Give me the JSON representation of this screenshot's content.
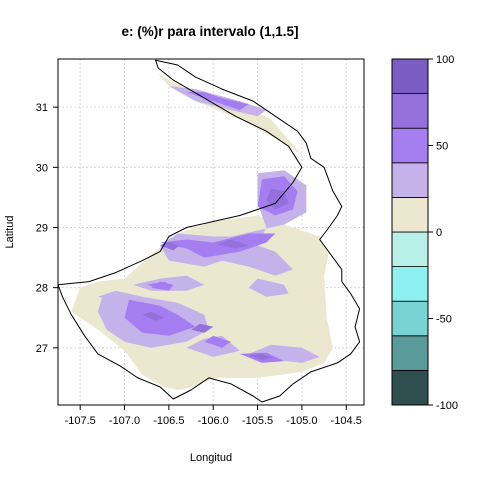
{
  "title": "e:   (%)r para intervalo (1,1.5]",
  "chart_data": {
    "type": "heatmap",
    "title": "e:   (%)r para intervalo (1,1.5]",
    "xlabel": "Longitud",
    "ylabel": "Latitud",
    "xlim": [
      -107.75,
      -104.3
    ],
    "ylim": [
      26.05,
      31.8
    ],
    "x_ticks": [
      -107.5,
      -107.0,
      -106.5,
      -106.0,
      -105.5,
      -105.0,
      -104.5
    ],
    "x_tick_labels": [
      "-107.5",
      "-107.0",
      "-106.5",
      "-106.0",
      "-105.5",
      "-105.0",
      "-104.5"
    ],
    "y_ticks": [
      27,
      28,
      29,
      30,
      31
    ],
    "y_tick_labels": [
      "27",
      "28",
      "29",
      "30",
      "31"
    ],
    "grid": true,
    "colorbar": {
      "breaks": [
        -100,
        -80,
        -60,
        -40,
        -20,
        0,
        20,
        40,
        60,
        80,
        100
      ],
      "tick_values": [
        -100,
        -50,
        0,
        50,
        100
      ],
      "tick_labels": [
        "-100",
        "-50",
        "0",
        "50",
        "100"
      ],
      "colors": [
        "#2f4f4f",
        "#5a9a9a",
        "#79d3d3",
        "#8ef0f0",
        "#b8f0e8",
        "#ece7cf",
        "#c6b2ea",
        "#a47ef0",
        "#9370db",
        "#7b5cc2"
      ]
    },
    "regions": [
      {
        "level": 0,
        "polygons": [
          [
            [
              -106.4,
              26.3
            ],
            [
              -106.2,
              26.35
            ],
            [
              -106.0,
              26.5
            ],
            [
              -105.5,
              26.5
            ],
            [
              -105.0,
              26.6
            ],
            [
              -104.75,
              26.75
            ],
            [
              -104.65,
              27.0
            ],
            [
              -104.72,
              27.5
            ],
            [
              -104.75,
              28.2
            ],
            [
              -104.7,
              28.55
            ],
            [
              -104.8,
              28.85
            ],
            [
              -105.1,
              29.0
            ],
            [
              -105.5,
              29.2
            ],
            [
              -106.0,
              29.1
            ],
            [
              -106.4,
              28.9
            ],
            [
              -106.7,
              28.55
            ],
            [
              -107.0,
              28.15
            ],
            [
              -107.3,
              28.1
            ],
            [
              -107.5,
              28.0
            ],
            [
              -107.6,
              27.6
            ],
            [
              -107.3,
              27.3
            ],
            [
              -107.0,
              26.95
            ],
            [
              -106.8,
              26.55
            ],
            [
              -106.55,
              26.35
            ]
          ],
          [
            [
              -106.62,
              31.55
            ],
            [
              -106.3,
              31.3
            ],
            [
              -105.8,
              31.1
            ],
            [
              -105.35,
              30.8
            ],
            [
              -105.0,
              30.2
            ],
            [
              -104.9,
              30.1
            ],
            [
              -105.2,
              30.4
            ],
            [
              -105.7,
              30.8
            ],
            [
              -106.2,
              31.1
            ],
            [
              -106.5,
              31.35
            ]
          ]
        ]
      },
      {
        "level": 1,
        "polygons": [
          [
            [
              -106.9,
              28.05
            ],
            [
              -106.6,
              28.15
            ],
            [
              -106.3,
              28.2
            ],
            [
              -106.1,
              28.05
            ],
            [
              -106.3,
              27.95
            ],
            [
              -106.7,
              27.95
            ]
          ],
          [
            [
              -105.6,
              26.9
            ],
            [
              -105.3,
              26.8
            ],
            [
              -105.0,
              26.75
            ],
            [
              -104.8,
              26.85
            ],
            [
              -105.0,
              27.0
            ],
            [
              -105.35,
              27.05
            ]
          ],
          [
            [
              -107.3,
              27.85
            ],
            [
              -107.0,
              27.75
            ],
            [
              -106.9,
              27.85
            ],
            [
              -107.1,
              27.95
            ]
          ]
        ]
      },
      {
        "level": 2,
        "polygons": [
          [
            [
              -105.7,
              26.9
            ],
            [
              -105.45,
              26.75
            ],
            [
              -105.2,
              26.78
            ],
            [
              -105.4,
              26.92
            ]
          ],
          [
            [
              -106.75,
              28.05
            ],
            [
              -106.55,
              28.1
            ],
            [
              -106.45,
              28.02
            ],
            [
              -106.6,
              27.98
            ]
          ]
        ]
      },
      {
        "level": 3,
        "polygons": [
          [
            [
              -105.6,
              26.88
            ],
            [
              -105.45,
              26.8
            ],
            [
              -105.32,
              26.84
            ],
            [
              -105.46,
              26.9
            ]
          ]
        ]
      },
      {
        "level": 6,
        "polygons": [
          [
            [
              -106.5,
              31.35
            ],
            [
              -106.2,
              31.1
            ],
            [
              -105.8,
              30.95
            ],
            [
              -105.5,
              30.85
            ],
            [
              -105.4,
              30.95
            ],
            [
              -105.7,
              31.1
            ],
            [
              -106.2,
              31.3
            ]
          ],
          [
            [
              -105.5,
              29.9
            ],
            [
              -105.2,
              29.95
            ],
            [
              -104.95,
              29.7
            ],
            [
              -104.95,
              29.25
            ],
            [
              -105.2,
              29.05
            ],
            [
              -105.5,
              28.95
            ],
            [
              -105.8,
              28.85
            ],
            [
              -106.0,
              28.85
            ],
            [
              -106.4,
              28.9
            ],
            [
              -106.6,
              28.7
            ],
            [
              -106.5,
              28.45
            ],
            [
              -106.1,
              28.35
            ],
            [
              -105.9,
              28.45
            ],
            [
              -105.6,
              28.35
            ],
            [
              -105.3,
              28.2
            ],
            [
              -105.1,
              28.3
            ],
            [
              -105.3,
              28.6
            ],
            [
              -105.5,
              28.7
            ],
            [
              -105.4,
              29.0
            ],
            [
              -105.5,
              29.4
            ]
          ],
          [
            [
              -107.1,
              27.95
            ],
            [
              -106.8,
              27.85
            ],
            [
              -106.4,
              27.75
            ],
            [
              -106.1,
              27.55
            ],
            [
              -106.05,
              27.3
            ],
            [
              -106.3,
              27.1
            ],
            [
              -106.7,
              27.0
            ],
            [
              -107.0,
              27.1
            ],
            [
              -107.2,
              27.3
            ],
            [
              -107.3,
              27.6
            ],
            [
              -107.25,
              27.85
            ]
          ],
          [
            [
              -106.3,
              27.0
            ],
            [
              -106.0,
              26.85
            ],
            [
              -105.7,
              26.95
            ],
            [
              -105.9,
              27.2
            ],
            [
              -106.1,
              27.15
            ]
          ],
          [
            [
              -105.5,
              28.15
            ],
            [
              -105.2,
              28.05
            ],
            [
              -105.15,
              27.9
            ],
            [
              -105.4,
              27.85
            ],
            [
              -105.6,
              28.0
            ]
          ]
        ]
      },
      {
        "level": 7,
        "polygons": [
          [
            [
              -106.3,
              31.25
            ],
            [
              -106.0,
              31.1
            ],
            [
              -105.7,
              30.95
            ],
            [
              -105.6,
              31.05
            ],
            [
              -105.9,
              31.15
            ],
            [
              -106.1,
              31.25
            ]
          ],
          [
            [
              -105.45,
              29.8
            ],
            [
              -105.2,
              29.85
            ],
            [
              -105.05,
              29.6
            ],
            [
              -105.1,
              29.3
            ],
            [
              -105.3,
              29.2
            ],
            [
              -105.5,
              29.35
            ]
          ],
          [
            [
              -106.6,
              28.75
            ],
            [
              -106.3,
              28.65
            ],
            [
              -106.1,
              28.5
            ],
            [
              -105.7,
              28.6
            ],
            [
              -105.4,
              28.75
            ],
            [
              -105.3,
              28.9
            ],
            [
              -105.6,
              28.9
            ],
            [
              -106.0,
              28.75
            ],
            [
              -106.3,
              28.8
            ]
          ],
          [
            [
              -106.95,
              27.8
            ],
            [
              -106.6,
              27.7
            ],
            [
              -106.4,
              27.55
            ],
            [
              -106.2,
              27.35
            ],
            [
              -106.5,
              27.2
            ],
            [
              -106.8,
              27.25
            ],
            [
              -107.0,
              27.5
            ]
          ],
          [
            [
              -106.7,
              28.0
            ],
            [
              -106.5,
              27.95
            ],
            [
              -106.45,
              28.05
            ],
            [
              -106.6,
              28.1
            ]
          ],
          [
            [
              -106.1,
              27.1
            ],
            [
              -105.9,
              27.0
            ],
            [
              -105.8,
              27.1
            ],
            [
              -106.0,
              27.2
            ]
          ]
        ]
      },
      {
        "level": 8,
        "polygons": [
          [
            [
              -105.35,
              29.65
            ],
            [
              -105.2,
              29.6
            ],
            [
              -105.15,
              29.4
            ],
            [
              -105.3,
              29.3
            ],
            [
              -105.4,
              29.45
            ]
          ],
          [
            [
              -105.95,
              28.72
            ],
            [
              -105.75,
              28.65
            ],
            [
              -105.6,
              28.7
            ],
            [
              -105.8,
              28.8
            ]
          ],
          [
            [
              -106.8,
              27.55
            ],
            [
              -106.65,
              27.45
            ],
            [
              -106.55,
              27.5
            ],
            [
              -106.7,
              27.6
            ]
          ],
          [
            [
              -106.25,
              27.3
            ],
            [
              -106.1,
              27.25
            ],
            [
              -106.0,
              27.35
            ],
            [
              -106.15,
              27.4
            ]
          ],
          [
            [
              -106.6,
              28.7
            ],
            [
              -106.45,
              28.62
            ],
            [
              -106.38,
              28.7
            ],
            [
              -106.5,
              28.76
            ]
          ]
        ]
      }
    ],
    "boundary": [
      [
        -106.65,
        31.78
      ],
      [
        -106.4,
        31.7
      ],
      [
        -106.2,
        31.5
      ],
      [
        -105.9,
        31.3
      ],
      [
        -105.55,
        31.1
      ],
      [
        -105.3,
        30.85
      ],
      [
        -105.05,
        30.6
      ],
      [
        -104.95,
        30.4
      ],
      [
        -104.9,
        30.15
      ],
      [
        -104.75,
        30.0
      ],
      [
        -104.65,
        29.6
      ],
      [
        -104.55,
        29.35
      ],
      [
        -104.6,
        29.2
      ],
      [
        -104.72,
        28.95
      ],
      [
        -104.8,
        28.8
      ],
      [
        -104.65,
        28.5
      ],
      [
        -104.55,
        28.3
      ],
      [
        -104.55,
        28.1
      ],
      [
        -104.45,
        27.9
      ],
      [
        -104.35,
        27.65
      ],
      [
        -104.4,
        27.35
      ],
      [
        -104.35,
        27.1
      ],
      [
        -104.45,
        26.9
      ],
      [
        -104.6,
        26.75
      ],
      [
        -104.9,
        26.6
      ],
      [
        -105.1,
        26.4
      ],
      [
        -105.25,
        26.2
      ],
      [
        -105.45,
        26.1
      ],
      [
        -105.55,
        26.2
      ],
      [
        -105.8,
        26.4
      ],
      [
        -106.05,
        26.5
      ],
      [
        -106.25,
        26.3
      ],
      [
        -106.45,
        26.15
      ],
      [
        -106.6,
        26.35
      ],
      [
        -106.85,
        26.5
      ],
      [
        -107.05,
        26.7
      ],
      [
        -107.3,
        26.9
      ],
      [
        -107.45,
        27.2
      ],
      [
        -107.6,
        27.55
      ],
      [
        -107.7,
        27.85
      ],
      [
        -107.75,
        28.05
      ],
      [
        -107.4,
        28.1
      ],
      [
        -107.1,
        28.25
      ],
      [
        -106.8,
        28.45
      ],
      [
        -106.6,
        28.6
      ],
      [
        -106.5,
        28.85
      ],
      [
        -106.3,
        29.0
      ],
      [
        -106.0,
        29.1
      ],
      [
        -105.7,
        29.2
      ],
      [
        -105.3,
        29.4
      ],
      [
        -105.1,
        29.75
      ],
      [
        -105.0,
        30.0
      ],
      [
        -105.15,
        30.35
      ],
      [
        -105.4,
        30.6
      ],
      [
        -105.75,
        30.85
      ],
      [
        -106.1,
        31.15
      ],
      [
        -106.45,
        31.45
      ],
      [
        -106.62,
        31.65
      ]
    ]
  }
}
